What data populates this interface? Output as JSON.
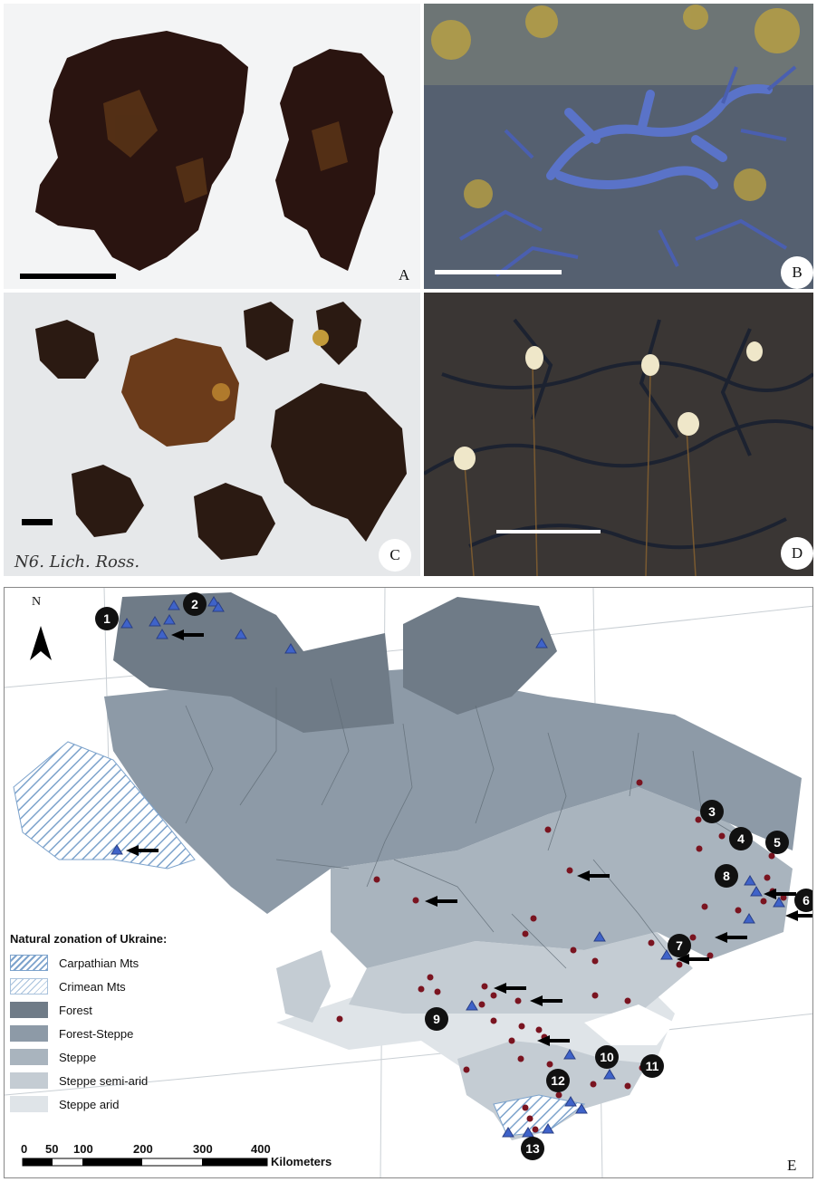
{
  "panels": {
    "A": {
      "label": "A"
    },
    "B": {
      "label": "B"
    },
    "C": {
      "label": "C",
      "handwriting": "N6. Lich. Ross."
    },
    "D": {
      "label": "D"
    },
    "E": {
      "label": "E"
    }
  },
  "map": {
    "north_label": "N",
    "legend": {
      "title": "Natural zonation of Ukraine:",
      "items": [
        {
          "label": "Carpathian Mts",
          "color": "#dbe6f2",
          "pattern": "hatch"
        },
        {
          "label": "Crimean Mts",
          "color": "#eef2f6",
          "pattern": "hatch"
        },
        {
          "label": "Forest",
          "color": "#6f7b87",
          "pattern": "solid"
        },
        {
          "label": "Forest-Steppe",
          "color": "#8d9aa7",
          "pattern": "solid"
        },
        {
          "label": "Steppe",
          "color": "#a9b4be",
          "pattern": "solid"
        },
        {
          "label": "Steppe semi-arid",
          "color": "#c4ccd3",
          "pattern": "solid"
        },
        {
          "label": "Steppe arid",
          "color": "#dfe4e8",
          "pattern": "solid"
        }
      ]
    },
    "scale": {
      "ticks": [
        "0",
        "50",
        "100",
        "200",
        "300",
        "400"
      ],
      "unit": "Kilometers"
    },
    "numbered_sites": [
      "1",
      "2",
      "3",
      "4",
      "5",
      "6",
      "7",
      "8",
      "9",
      "10",
      "11",
      "12",
      "13"
    ],
    "colors": {
      "triangle": "#3f63c9",
      "dot": "#7a1420",
      "arrow": "#000000"
    }
  }
}
